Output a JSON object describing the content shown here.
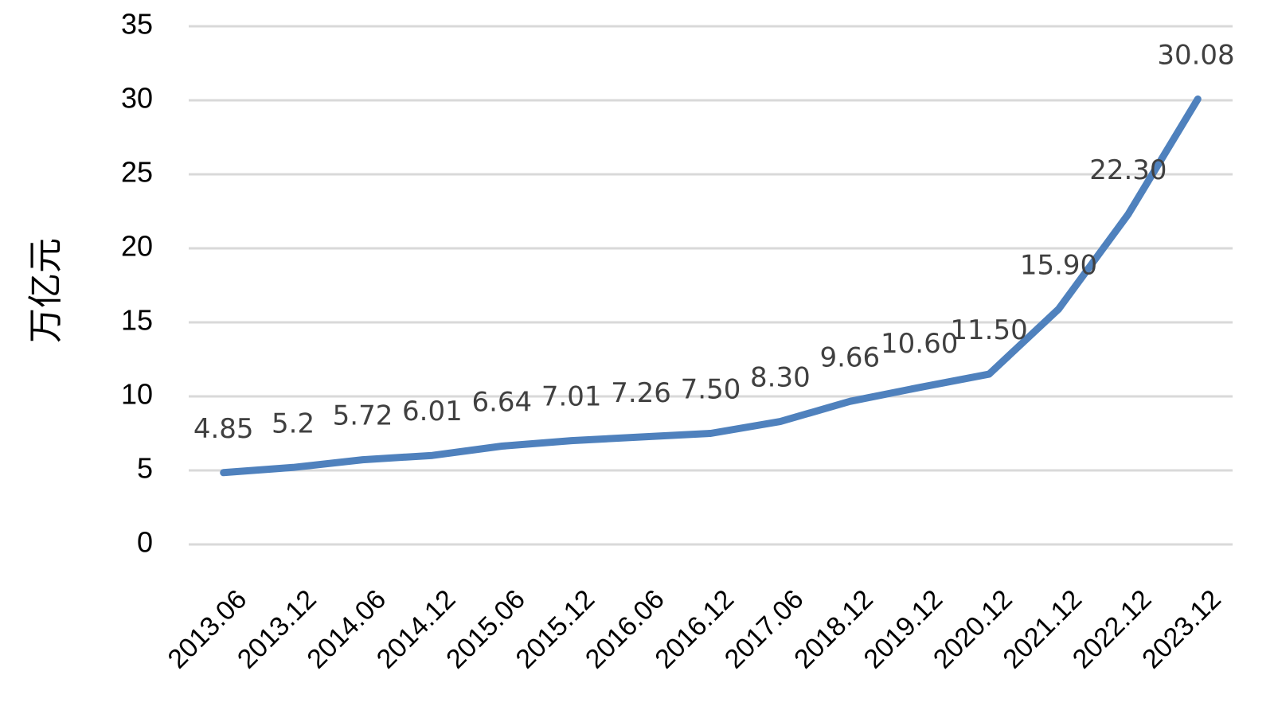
{
  "chart_data": {
    "type": "line",
    "title": "",
    "xlabel": "",
    "ylabel": "万亿元",
    "categories": [
      "2013.06",
      "2013.12",
      "2014.06",
      "2014.12",
      "2015.06",
      "2015.12",
      "2016.06",
      "2016.12",
      "2017.06",
      "2018.12",
      "2019.12",
      "2020.12",
      "2021.12",
      "2022.12",
      "2023.12"
    ],
    "series": [
      {
        "values": [
          4.85,
          5.2,
          5.72,
          6.01,
          6.64,
          7.01,
          7.26,
          7.5,
          8.3,
          9.66,
          10.6,
          11.5,
          15.9,
          22.3,
          30.08
        ],
        "labels": [
          "4.85",
          "5.2",
          "5.72",
          "6.01",
          "6.64",
          "7.01",
          "7.26",
          "7.50",
          "8.30",
          "9.66",
          "10.60",
          "11.50",
          "15.90",
          "22.30",
          "30.08"
        ],
        "color": "#4f81bd"
      }
    ],
    "ylim": [
      0,
      35
    ],
    "yticks": [
      "0",
      "5",
      "10",
      "15",
      "20",
      "25",
      "30",
      "35"
    ],
    "grid": true,
    "legend": "none"
  }
}
